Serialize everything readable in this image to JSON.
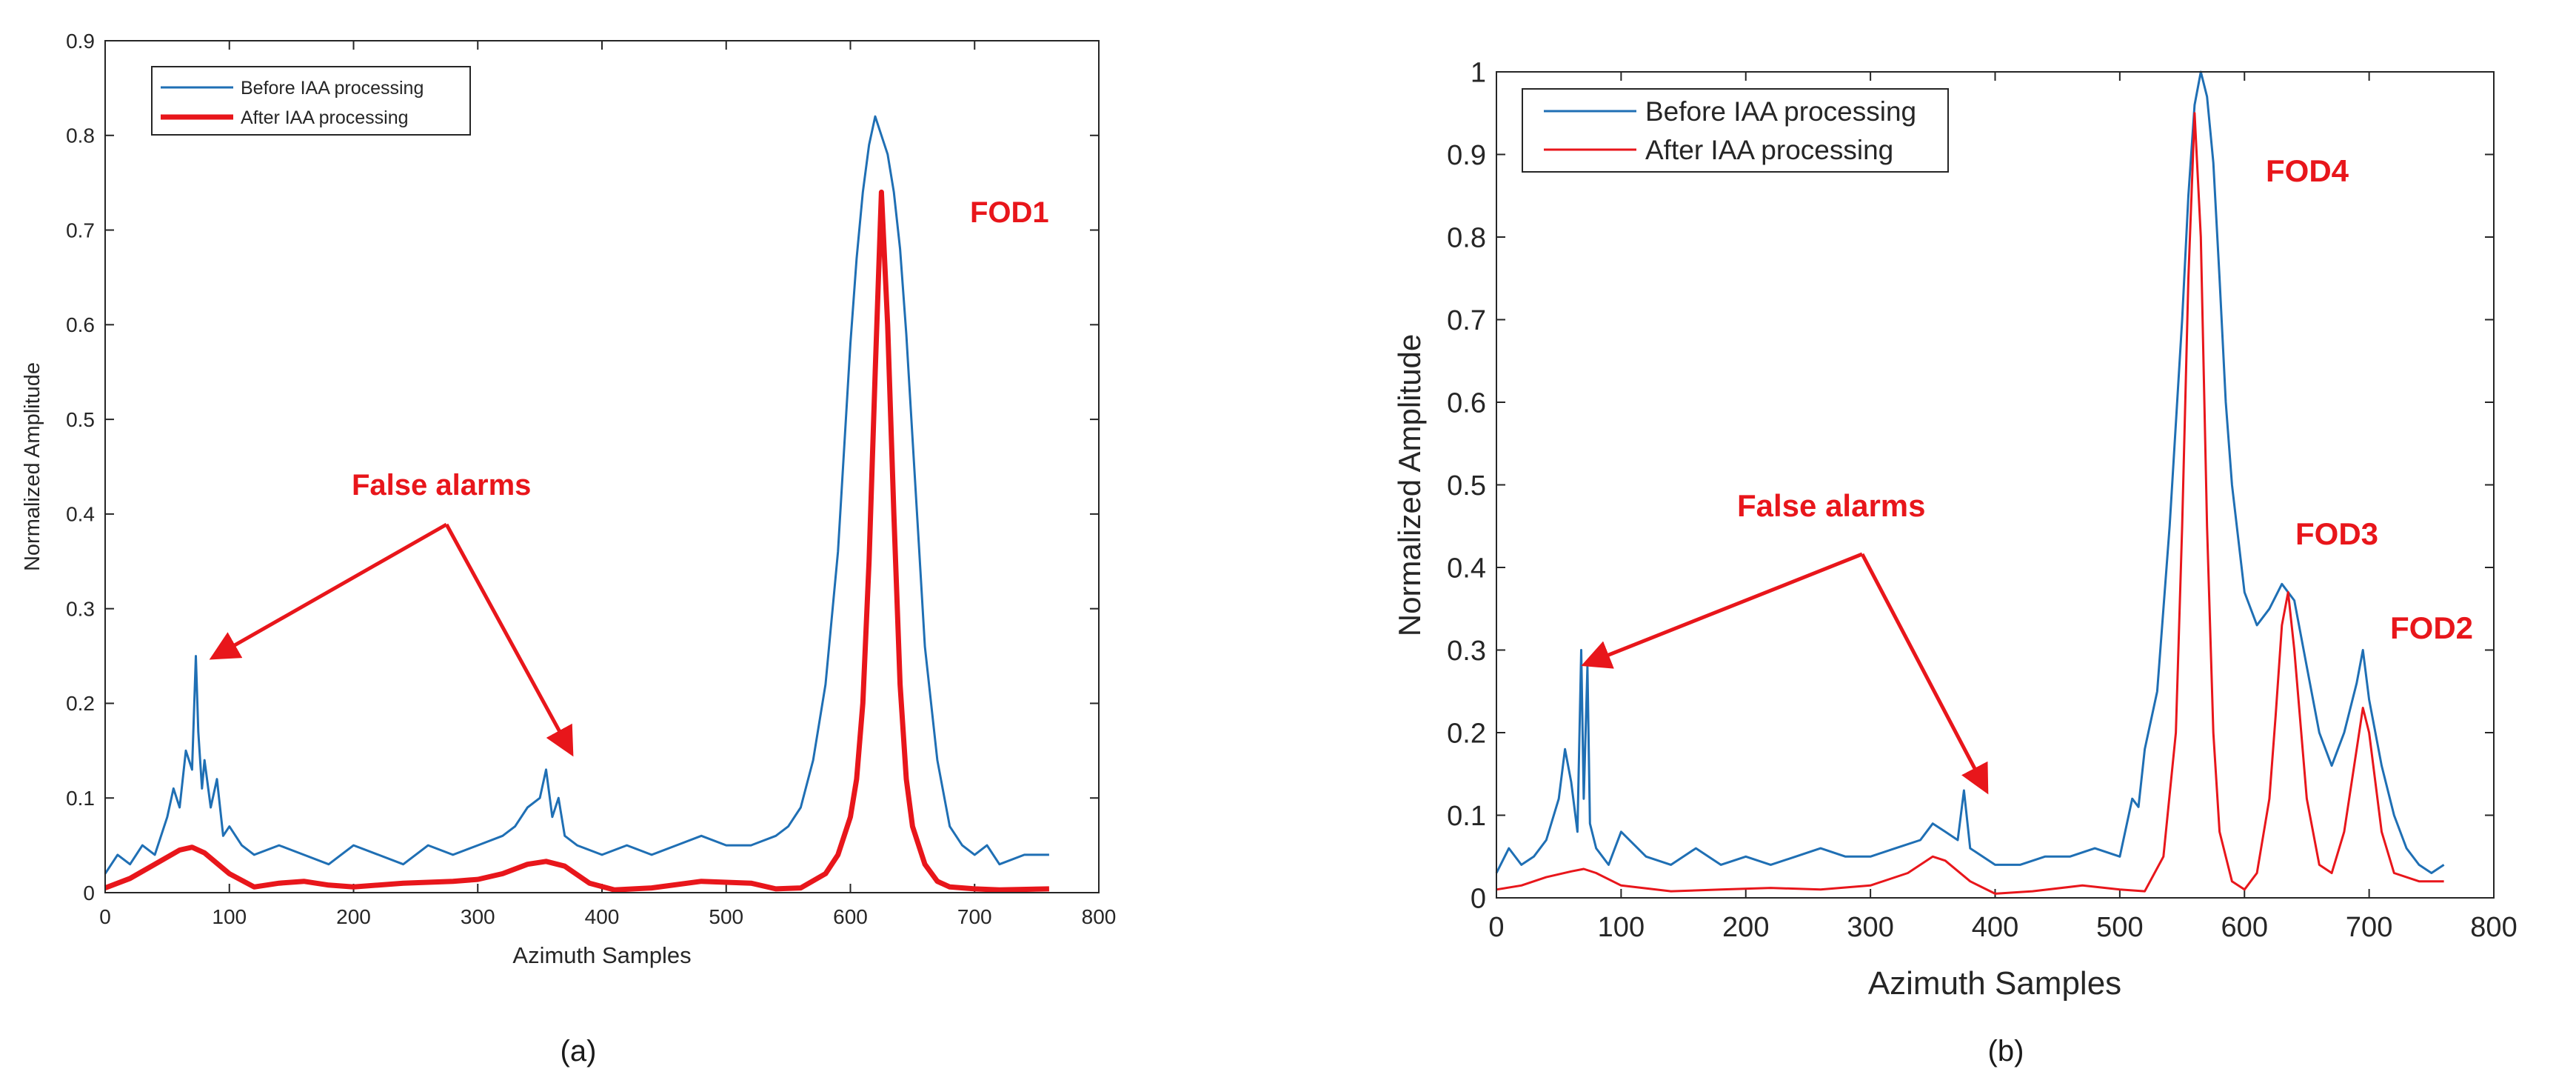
{
  "colors": {
    "before": "#1f6fb4",
    "after": "#e8161b",
    "annotation": "#e8161b",
    "axis": "#262626"
  },
  "panels": [
    {
      "caption": "(a)"
    },
    {
      "caption": "(b)"
    }
  ],
  "chart_data": [
    {
      "type": "line",
      "panel": "(a)",
      "xlabel": "Azimuth Samples",
      "ylabel": "Normalized Amplitude",
      "xlim": [
        0,
        800
      ],
      "ylim": [
        0,
        0.9
      ],
      "xticks": [
        "0",
        "100",
        "200",
        "300",
        "400",
        "500",
        "600",
        "700",
        "800"
      ],
      "yticks": [
        "0",
        "0.1",
        "0.2",
        "0.3",
        "0.4",
        "0.5",
        "0.6",
        "0.7",
        "0.8",
        "0.9"
      ],
      "legend": {
        "placement": "top-left",
        "entries": [
          "Before IAA processing",
          "After IAA processing"
        ]
      },
      "series": [
        {
          "name": "Before IAA processing",
          "x": [
            0,
            10,
            20,
            30,
            40,
            50,
            55,
            60,
            65,
            70,
            73,
            75,
            78,
            80,
            85,
            90,
            95,
            100,
            110,
            120,
            140,
            160,
            180,
            200,
            220,
            240,
            260,
            280,
            300,
            320,
            330,
            340,
            350,
            355,
            360,
            365,
            370,
            380,
            400,
            420,
            440,
            460,
            480,
            500,
            520,
            540,
            550,
            560,
            570,
            580,
            590,
            600,
            605,
            610,
            615,
            620,
            625,
            630,
            635,
            640,
            645,
            650,
            655,
            660,
            670,
            680,
            690,
            700,
            710,
            720,
            740,
            760
          ],
          "y": [
            0.02,
            0.04,
            0.03,
            0.05,
            0.04,
            0.08,
            0.11,
            0.09,
            0.15,
            0.13,
            0.25,
            0.17,
            0.11,
            0.14,
            0.09,
            0.12,
            0.06,
            0.07,
            0.05,
            0.04,
            0.05,
            0.04,
            0.03,
            0.05,
            0.04,
            0.03,
            0.05,
            0.04,
            0.05,
            0.06,
            0.07,
            0.09,
            0.1,
            0.13,
            0.08,
            0.1,
            0.06,
            0.05,
            0.04,
            0.05,
            0.04,
            0.05,
            0.06,
            0.05,
            0.05,
            0.06,
            0.07,
            0.09,
            0.14,
            0.22,
            0.36,
            0.58,
            0.67,
            0.74,
            0.79,
            0.82,
            0.8,
            0.78,
            0.74,
            0.68,
            0.59,
            0.48,
            0.37,
            0.26,
            0.14,
            0.07,
            0.05,
            0.04,
            0.05,
            0.03,
            0.04,
            0.04
          ]
        },
        {
          "name": "After IAA processing",
          "x": [
            0,
            20,
            40,
            60,
            70,
            80,
            100,
            120,
            140,
            160,
            180,
            200,
            240,
            280,
            300,
            320,
            340,
            355,
            370,
            390,
            410,
            440,
            480,
            520,
            540,
            560,
            580,
            590,
            600,
            605,
            610,
            615,
            620,
            625,
            630,
            635,
            640,
            645,
            650,
            660,
            670,
            680,
            700,
            720,
            760
          ],
          "y": [
            0.005,
            0.015,
            0.03,
            0.045,
            0.048,
            0.042,
            0.02,
            0.006,
            0.01,
            0.012,
            0.008,
            0.006,
            0.01,
            0.012,
            0.014,
            0.02,
            0.03,
            0.033,
            0.028,
            0.01,
            0.003,
            0.005,
            0.012,
            0.01,
            0.004,
            0.005,
            0.02,
            0.04,
            0.08,
            0.12,
            0.2,
            0.35,
            0.55,
            0.74,
            0.6,
            0.4,
            0.22,
            0.12,
            0.07,
            0.03,
            0.012,
            0.006,
            0.004,
            0.003,
            0.004
          ]
        }
      ],
      "annotations": [
        "FOD1",
        "False alarms"
      ]
    },
    {
      "type": "line",
      "panel": "(b)",
      "xlabel": "Azimuth Samples",
      "ylabel": "Normalized Amplitude",
      "xlim": [
        0,
        800
      ],
      "ylim": [
        0,
        1
      ],
      "xticks": [
        "0",
        "100",
        "200",
        "300",
        "400",
        "500",
        "600",
        "700",
        "800"
      ],
      "yticks": [
        "0",
        "0.1",
        "0.2",
        "0.3",
        "0.4",
        "0.5",
        "0.6",
        "0.7",
        "0.8",
        "0.9",
        "1"
      ],
      "legend": {
        "placement": "top-left",
        "entries": [
          "Before IAA processing",
          "After IAA processing"
        ]
      },
      "series": [
        {
          "name": "Before IAA processing",
          "x": [
            0,
            10,
            20,
            30,
            40,
            50,
            55,
            60,
            65,
            68,
            70,
            73,
            75,
            80,
            90,
            100,
            120,
            140,
            160,
            180,
            200,
            220,
            240,
            260,
            280,
            300,
            320,
            340,
            350,
            360,
            370,
            375,
            380,
            400,
            420,
            440,
            460,
            480,
            500,
            510,
            515,
            520,
            530,
            540,
            550,
            555,
            560,
            565,
            570,
            575,
            580,
            585,
            590,
            600,
            610,
            620,
            630,
            640,
            650,
            660,
            670,
            680,
            690,
            695,
            700,
            710,
            720,
            730,
            740,
            750,
            760
          ],
          "y": [
            0.03,
            0.06,
            0.04,
            0.05,
            0.07,
            0.12,
            0.18,
            0.14,
            0.08,
            0.3,
            0.12,
            0.28,
            0.09,
            0.06,
            0.04,
            0.08,
            0.05,
            0.04,
            0.06,
            0.04,
            0.05,
            0.04,
            0.05,
            0.06,
            0.05,
            0.05,
            0.06,
            0.07,
            0.09,
            0.08,
            0.07,
            0.13,
            0.06,
            0.04,
            0.04,
            0.05,
            0.05,
            0.06,
            0.05,
            0.12,
            0.11,
            0.18,
            0.25,
            0.45,
            0.7,
            0.85,
            0.96,
            1.0,
            0.97,
            0.89,
            0.75,
            0.6,
            0.5,
            0.37,
            0.33,
            0.35,
            0.38,
            0.36,
            0.28,
            0.2,
            0.16,
            0.2,
            0.26,
            0.3,
            0.24,
            0.16,
            0.1,
            0.06,
            0.04,
            0.03,
            0.04
          ]
        },
        {
          "name": "After IAA processing",
          "x": [
            0,
            20,
            40,
            60,
            70,
            80,
            100,
            140,
            180,
            220,
            260,
            300,
            330,
            350,
            360,
            380,
            400,
            430,
            470,
            500,
            520,
            535,
            545,
            550,
            555,
            560,
            565,
            570,
            575,
            580,
            590,
            600,
            610,
            620,
            625,
            630,
            635,
            640,
            650,
            660,
            670,
            680,
            690,
            695,
            700,
            710,
            720,
            740,
            760
          ],
          "y": [
            0.01,
            0.015,
            0.025,
            0.032,
            0.035,
            0.03,
            0.015,
            0.008,
            0.01,
            0.012,
            0.01,
            0.015,
            0.03,
            0.05,
            0.045,
            0.02,
            0.005,
            0.008,
            0.015,
            0.01,
            0.008,
            0.05,
            0.2,
            0.45,
            0.75,
            0.95,
            0.8,
            0.45,
            0.2,
            0.08,
            0.02,
            0.01,
            0.03,
            0.12,
            0.22,
            0.33,
            0.37,
            0.3,
            0.12,
            0.04,
            0.03,
            0.08,
            0.18,
            0.23,
            0.2,
            0.08,
            0.03,
            0.02,
            0.02
          ]
        }
      ],
      "annotations": [
        "FOD4",
        "FOD3",
        "FOD2",
        "False alarms"
      ]
    }
  ]
}
